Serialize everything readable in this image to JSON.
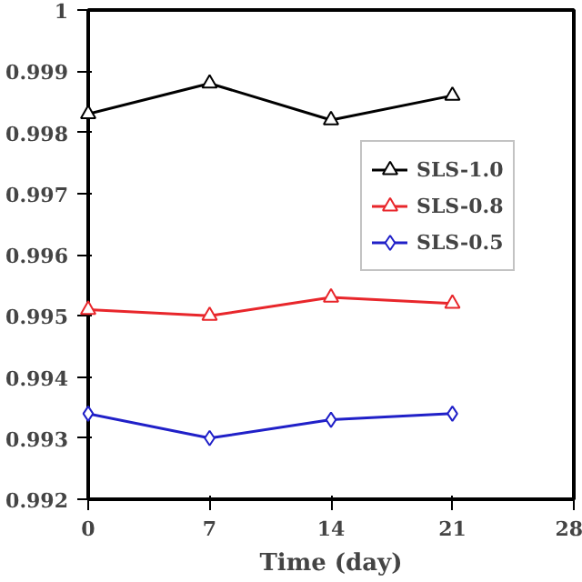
{
  "chart_data": {
    "type": "line",
    "xlabel": "Time (day)",
    "x": [
      0,
      7,
      14,
      21
    ],
    "series": [
      {
        "name": "SLS-1.0",
        "color": "#000000",
        "marker": "triangle",
        "values": [
          0.9983,
          0.9988,
          0.9982,
          0.9986
        ]
      },
      {
        "name": "SLS-0.8",
        "color": "#e8262b",
        "marker": "triangle",
        "values": [
          0.9951,
          0.995,
          0.9953,
          0.9952
        ]
      },
      {
        "name": "SLS-0.5",
        "color": "#2020c8",
        "marker": "diamond",
        "values": [
          0.9934,
          0.993,
          0.9933,
          0.9934
        ]
      }
    ],
    "xlim": [
      0,
      28
    ],
    "xticks": [
      0,
      7,
      14,
      21,
      28
    ],
    "ylim": [
      0.992,
      1.0
    ],
    "yticks": [
      0.992,
      0.993,
      0.994,
      0.995,
      0.996,
      0.997,
      0.998,
      0.999,
      1.0
    ],
    "grid": false,
    "legend": "right",
    "line_style": "solid"
  }
}
